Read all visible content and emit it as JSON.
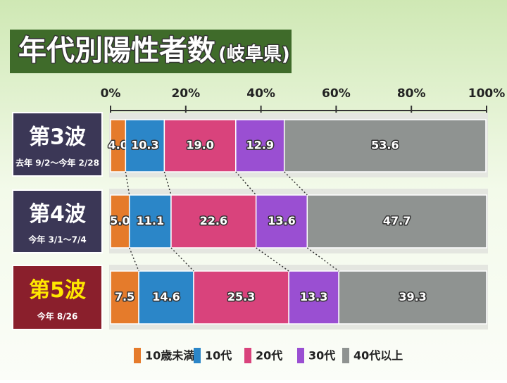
{
  "chart_data": {
    "type": "stacked-bar-horizontal",
    "title": "年代別陽性者数",
    "subtitle": "(岐阜県)",
    "categories": [
      "第3波",
      "第4波",
      "第5波"
    ],
    "category_dates": [
      "去年 9/2〜今年 2/28",
      "今年 3/1〜7/4",
      "今年 8/26"
    ],
    "category_box_colors": [
      "#3b3756",
      "#3b3756",
      "#8a1f2c"
    ],
    "category_text_colors": [
      "#ffffff",
      "#ffffff",
      "#ffe800"
    ],
    "xlim": [
      0,
      100
    ],
    "xticks": [
      {
        "value": 0,
        "label": "0%"
      },
      {
        "value": 20,
        "label": "20%"
      },
      {
        "value": 40,
        "label": "40%"
      },
      {
        "value": 60,
        "label": "60%"
      },
      {
        "value": 80,
        "label": "80%"
      },
      {
        "value": 100,
        "label": "100%"
      }
    ],
    "series": [
      {
        "name": "10歳未満",
        "color": "#e57b2b",
        "values": [
          4.0,
          5.0,
          7.5
        ],
        "value_labels": [
          "4.0",
          "5.0",
          "7.5"
        ]
      },
      {
        "name": "10代",
        "color": "#2b86c8",
        "values": [
          10.3,
          11.1,
          14.6
        ]
      },
      {
        "name": "20代",
        "color": "#d9437c",
        "values": [
          19.0,
          22.6,
          25.3
        ],
        "value_labels": [
          "19.0",
          "22.6",
          "25.3"
        ]
      },
      {
        "name": "30代",
        "color": "#9a4fd2",
        "values": [
          12.9,
          13.6,
          13.3
        ]
      },
      {
        "name": "40代以上",
        "color": "#8f9391",
        "values": [
          53.6,
          47.7,
          39.3
        ]
      }
    ]
  }
}
